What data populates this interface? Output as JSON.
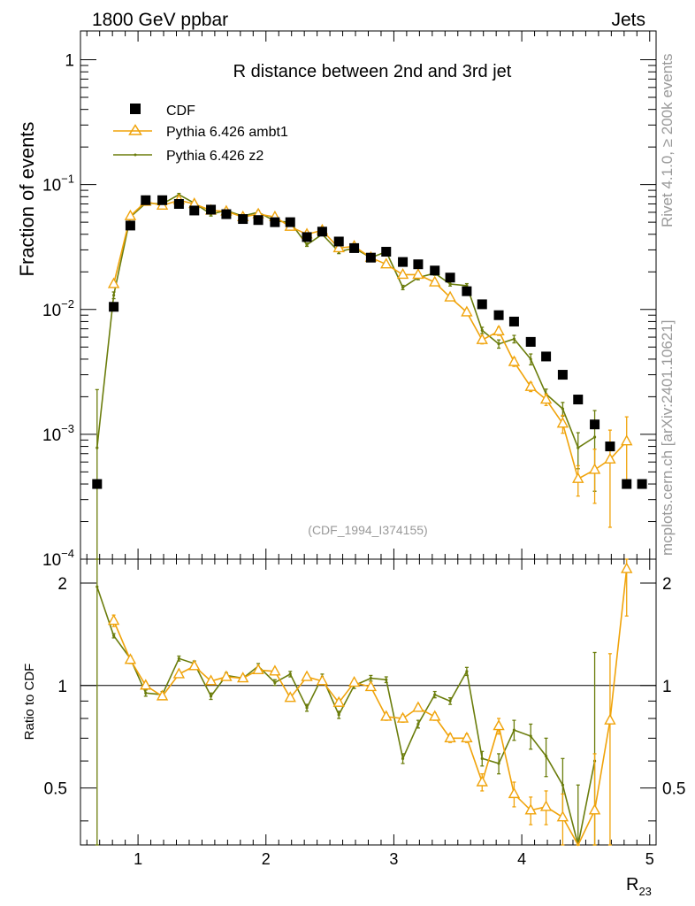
{
  "header": {
    "left": "1800 GeV ppbar",
    "right": "Jets"
  },
  "side_text": {
    "rivet": "Rivet 4.1.0, ≥ 200k events",
    "mcplots": "mcplots.cern.ch [arXiv:2401.10621]"
  },
  "chart_data": {
    "type": "line",
    "title": "R distance between 2nd and 3rd jet",
    "analysis_id": "(CDF_1994_I374155)",
    "xlabel": "R",
    "xlabel_sub": "23",
    "ylabel": "Fraction of events",
    "ratio_ylabel": "Ratio to CDF",
    "xlim": [
      0.55,
      5.05
    ],
    "ylim": [
      0.0001,
      1.7
    ],
    "yscale": "log",
    "ratio_ylim": [
      0.34,
      2.35
    ],
    "x_ticks": [
      "1",
      "2",
      "3",
      "4",
      "5"
    ],
    "y_ticks": [
      {
        "base": "1",
        "exp": ""
      },
      {
        "base": "10",
        "exp": "−1"
      },
      {
        "base": "10",
        "exp": "−2"
      },
      {
        "base": "10",
        "exp": "−3"
      },
      {
        "base": "10",
        "exp": "−4"
      }
    ],
    "ratio_ticks": [
      "2",
      "1",
      "0.5"
    ],
    "legend": [
      "CDF",
      "Pythia 6.426 ambt1",
      "Pythia 6.426 z2"
    ],
    "colors": {
      "data": "#000000",
      "ambt1": "#f0a30a",
      "z2": "#6b7d0c"
    },
    "x": [
      0.68,
      0.81,
      0.94,
      1.06,
      1.19,
      1.32,
      1.44,
      1.57,
      1.69,
      1.82,
      1.94,
      2.07,
      2.19,
      2.32,
      2.44,
      2.57,
      2.69,
      2.82,
      2.94,
      3.07,
      3.19,
      3.32,
      3.44,
      3.57,
      3.69,
      3.82,
      3.94,
      4.07,
      4.19,
      4.32,
      4.44,
      4.57,
      4.69,
      4.82,
      4.94
    ],
    "series": [
      {
        "name": "CDF",
        "values": [
          0.0004,
          0.0105,
          0.047,
          0.075,
          0.075,
          0.07,
          0.062,
          0.063,
          0.058,
          0.053,
          0.052,
          0.05,
          0.05,
          0.038,
          0.042,
          0.035,
          0.031,
          0.026,
          0.029,
          0.024,
          0.023,
          0.0205,
          0.018,
          0.014,
          0.011,
          0.009,
          0.008,
          0.0055,
          0.0042,
          0.003,
          0.0019,
          0.0012,
          0.0008,
          0.0004,
          0.0004
        ]
      },
      {
        "name": "Pythia 6.426 ambt1",
        "values": [
          null,
          0.016,
          0.056,
          0.073,
          0.068,
          0.075,
          0.07,
          0.062,
          0.061,
          0.055,
          0.058,
          0.055,
          0.046,
          0.04,
          0.043,
          0.031,
          0.032,
          0.026,
          0.023,
          0.019,
          0.019,
          0.0165,
          0.0125,
          0.0095,
          0.0057,
          0.0067,
          0.0038,
          0.0024,
          0.0019,
          0.00122,
          0.00044,
          0.00052,
          0.00063,
          0.00088,
          null
        ],
        "errors": [
          0,
          0.001,
          0.002,
          0.002,
          0.002,
          0.002,
          0.002,
          0.002,
          0.002,
          0.002,
          0.002,
          0.002,
          0.002,
          0.001,
          0.001,
          0.001,
          0.001,
          0.001,
          0.001,
          0.0008,
          0.0008,
          0.0007,
          0.0006,
          0.0005,
          0.0004,
          0.0005,
          0.0003,
          0.0002,
          0.0002,
          0.0002,
          0.00012,
          0.00024,
          0.00045,
          0.0005,
          0
        ]
      },
      {
        "name": "Pythia 6.426 z2",
        "values": [
          0.00078,
          0.013,
          0.055,
          0.071,
          0.07,
          0.083,
          0.071,
          0.058,
          0.062,
          0.056,
          0.06,
          0.051,
          0.05,
          0.033,
          0.04,
          0.029,
          0.031,
          0.026,
          0.029,
          0.015,
          0.018,
          0.0195,
          0.016,
          0.0155,
          0.0068,
          0.0053,
          0.0058,
          0.004,
          0.0021,
          0.0016,
          0.00078,
          0.00095,
          null,
          null,
          null
        ],
        "errors": [
          0.0015,
          0.0008,
          0.002,
          0.002,
          0.002,
          0.002,
          0.002,
          0.002,
          0.002,
          0.002,
          0.002,
          0.002,
          0.002,
          0.001,
          0.001,
          0.001,
          0.001,
          0.001,
          0.001,
          0.0006,
          0.0007,
          0.0007,
          0.0006,
          0.0006,
          0.0004,
          0.0004,
          0.0004,
          0.0004,
          0.0002,
          0.0002,
          0.00025,
          0.0006,
          0,
          0,
          0
        ]
      }
    ],
    "ratio_series": [
      {
        "name": "Pythia 6.426 ambt1",
        "values": [
          null,
          1.55,
          1.19,
          1.0,
          0.93,
          1.08,
          1.14,
          1.03,
          1.06,
          1.05,
          1.11,
          1.1,
          0.92,
          1.06,
          1.03,
          0.89,
          1.02,
          0.99,
          0.81,
          0.8,
          0.86,
          0.81,
          0.7,
          0.7,
          0.52,
          0.76,
          0.48,
          0.43,
          0.44,
          0.41,
          0.23,
          0.43,
          0.79,
          2.2,
          null
        ],
        "errors": [
          0,
          0.06,
          0.03,
          0.02,
          0.02,
          0.02,
          0.02,
          0.02,
          0.02,
          0.02,
          0.02,
          0.02,
          0.02,
          0.02,
          0.02,
          0.02,
          0.02,
          0.02,
          0.02,
          0.02,
          0.02,
          0.02,
          0.02,
          0.02,
          0.03,
          0.04,
          0.04,
          0.04,
          0.05,
          0.07,
          0.08,
          0.2,
          0.45,
          0.6,
          0
        ]
      },
      {
        "name": "Pythia 6.426 z2",
        "values": [
          1.95,
          1.4,
          1.2,
          0.95,
          0.94,
          1.2,
          1.16,
          0.93,
          1.07,
          1.05,
          1.14,
          1.02,
          1.08,
          0.86,
          1.06,
          0.82,
          1.0,
          1.05,
          1.04,
          0.61,
          0.77,
          0.94,
          0.9,
          1.1,
          0.61,
          0.59,
          0.74,
          0.71,
          0.62,
          0.51,
          0.31,
          0.6,
          null,
          null,
          null
        ],
        "errors": [
          1.8,
          0.02,
          0.02,
          0.02,
          0.02,
          0.02,
          0.02,
          0.02,
          0.02,
          0.02,
          0.02,
          0.02,
          0.02,
          0.02,
          0.02,
          0.02,
          0.02,
          0.02,
          0.02,
          0.02,
          0.02,
          0.02,
          0.02,
          0.03,
          0.03,
          0.04,
          0.05,
          0.06,
          0.08,
          0.1,
          0.2,
          0.65,
          0,
          0,
          0
        ]
      }
    ]
  }
}
